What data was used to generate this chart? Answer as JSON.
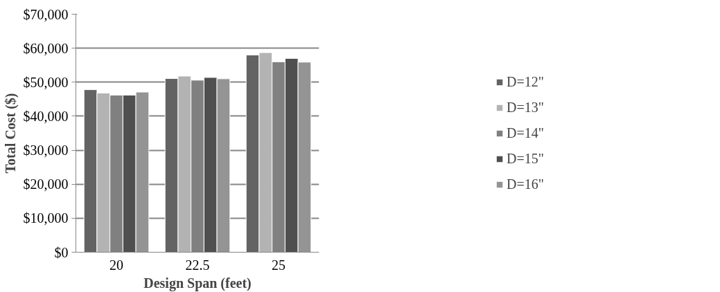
{
  "chart_data": {
    "type": "bar",
    "xlabel": "Design Span (feet)",
    "ylabel": "Total Cost ($)",
    "categories": [
      "20",
      "22.5",
      "25"
    ],
    "series": [
      {
        "name": "D=12\"",
        "color": "#636363",
        "values": [
          47800,
          51100,
          58000
        ]
      },
      {
        "name": "D=13\"",
        "color": "#b3b3b3",
        "values": [
          46800,
          51800,
          58700
        ]
      },
      {
        "name": "D=14\"",
        "color": "#808080",
        "values": [
          46200,
          50600,
          56000
        ]
      },
      {
        "name": "D=15\"",
        "color": "#4f4f4f",
        "values": [
          46200,
          51400,
          57000
        ]
      },
      {
        "name": "D=16\"",
        "color": "#949494",
        "values": [
          47100,
          51000,
          55900
        ]
      }
    ],
    "ylim": [
      0,
      70000
    ],
    "yticks": [
      {
        "value": 0,
        "label": "$0"
      },
      {
        "value": 10000,
        "label": "$10,000"
      },
      {
        "value": 20000,
        "label": "$20,000"
      },
      {
        "value": 30000,
        "label": "$30,000"
      },
      {
        "value": 40000,
        "label": "$40,000"
      },
      {
        "value": 50000,
        "label": "$50,000"
      },
      {
        "value": 60000,
        "label": "$60,000"
      },
      {
        "value": 70000,
        "label": "$70,000"
      }
    ],
    "grid": "y",
    "legend": "right"
  }
}
